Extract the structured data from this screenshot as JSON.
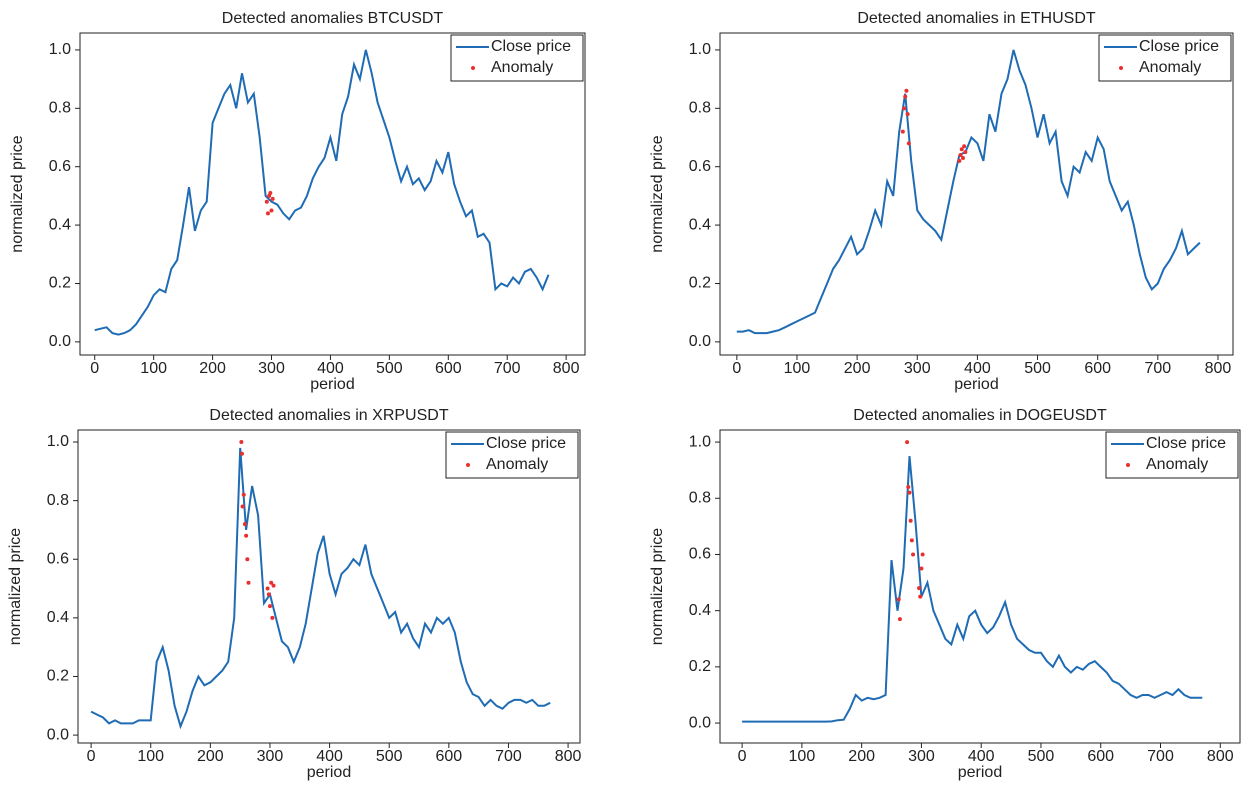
{
  "chart_data": [
    {
      "type": "line",
      "title": "Detected anomalies BTCUSDT",
      "x_label": "period",
      "y_label": "normalized price",
      "xlim": [
        -25,
        832
      ],
      "ylim": [
        -0.045,
        1.058
      ],
      "xticks": [
        0,
        100,
        200,
        300,
        400,
        500,
        600,
        700,
        800
      ],
      "yticks": [
        {
          "value": 0,
          "label": "0.0"
        },
        {
          "value": 0.2,
          "label": "0.2"
        },
        {
          "value": 0.4,
          "label": "0.4"
        },
        {
          "value": 0.6,
          "label": "0.6"
        },
        {
          "value": 0.8,
          "label": "0.8"
        },
        {
          "value": 1,
          "label": "1.0"
        }
      ],
      "legend": "upper right",
      "series": [
        {
          "name": "Close price",
          "color": "#1f6cb5",
          "style": "line",
          "x": [
            0,
            10,
            20,
            30,
            40,
            50,
            60,
            70,
            80,
            90,
            100,
            110,
            120,
            130,
            140,
            150,
            160,
            170,
            180,
            190,
            200,
            210,
            220,
            230,
            240,
            250,
            260,
            270,
            280,
            290,
            300,
            310,
            320,
            330,
            340,
            350,
            360,
            370,
            380,
            390,
            400,
            410,
            420,
            430,
            440,
            450,
            460,
            470,
            480,
            490,
            500,
            510,
            520,
            530,
            540,
            550,
            560,
            570,
            580,
            590,
            600,
            610,
            620,
            630,
            640,
            650,
            660,
            670,
            680,
            690,
            700,
            710,
            720,
            730,
            740,
            750,
            760,
            770
          ],
          "values": [
            0.04,
            0.045,
            0.05,
            0.03,
            0.025,
            0.03,
            0.04,
            0.06,
            0.09,
            0.12,
            0.16,
            0.18,
            0.17,
            0.25,
            0.28,
            0.4,
            0.53,
            0.38,
            0.45,
            0.48,
            0.75,
            0.8,
            0.85,
            0.88,
            0.8,
            0.92,
            0.82,
            0.85,
            0.7,
            0.5,
            0.48,
            0.47,
            0.44,
            0.42,
            0.45,
            0.46,
            0.5,
            0.56,
            0.6,
            0.63,
            0.7,
            0.62,
            0.78,
            0.84,
            0.95,
            0.9,
            1.0,
            0.92,
            0.82,
            0.76,
            0.7,
            0.62,
            0.55,
            0.6,
            0.54,
            0.56,
            0.52,
            0.55,
            0.62,
            0.58,
            0.65,
            0.54,
            0.48,
            0.43,
            0.45,
            0.36,
            0.37,
            0.34,
            0.18,
            0.2,
            0.19,
            0.22,
            0.2,
            0.24,
            0.25,
            0.22,
            0.18,
            0.23
          ]
        },
        {
          "name": "Anomaly",
          "color": "#e8312f",
          "style": "markers",
          "x": [
            292,
            294,
            296,
            298,
            300,
            302
          ],
          "values": [
            0.48,
            0.44,
            0.5,
            0.51,
            0.45,
            0.49
          ]
        }
      ]
    },
    {
      "type": "line",
      "title": "Detected anomalies in ETHUSDT",
      "x_label": "period",
      "y_label": "normalized price",
      "xlim": [
        -28,
        825
      ],
      "ylim": [
        -0.045,
        1.058
      ],
      "xticks": [
        0,
        100,
        200,
        300,
        400,
        500,
        600,
        700,
        800
      ],
      "yticks": [
        {
          "value": 0,
          "label": "0.0"
        },
        {
          "value": 0.2,
          "label": "0.2"
        },
        {
          "value": 0.4,
          "label": "0.4"
        },
        {
          "value": 0.6,
          "label": "0.6"
        },
        {
          "value": 0.8,
          "label": "0.8"
        },
        {
          "value": 1,
          "label": "1.0"
        }
      ],
      "legend": "upper right",
      "series": [
        {
          "name": "Close price",
          "color": "#1f6cb5",
          "style": "line",
          "x": [
            0,
            10,
            20,
            30,
            40,
            50,
            60,
            70,
            80,
            90,
            100,
            110,
            120,
            130,
            140,
            150,
            160,
            170,
            180,
            190,
            200,
            210,
            220,
            230,
            240,
            250,
            260,
            270,
            280,
            290,
            300,
            310,
            320,
            330,
            340,
            350,
            360,
            370,
            380,
            390,
            400,
            410,
            420,
            430,
            440,
            450,
            460,
            470,
            480,
            490,
            500,
            510,
            520,
            530,
            540,
            550,
            560,
            570,
            580,
            590,
            600,
            610,
            620,
            630,
            640,
            650,
            660,
            670,
            680,
            690,
            700,
            710,
            720,
            730,
            740,
            750,
            760,
            770
          ],
          "values": [
            0.035,
            0.035,
            0.04,
            0.03,
            0.03,
            0.03,
            0.035,
            0.04,
            0.05,
            0.06,
            0.07,
            0.08,
            0.09,
            0.1,
            0.15,
            0.2,
            0.25,
            0.28,
            0.32,
            0.36,
            0.3,
            0.32,
            0.38,
            0.45,
            0.4,
            0.55,
            0.5,
            0.72,
            0.85,
            0.62,
            0.45,
            0.42,
            0.4,
            0.38,
            0.35,
            0.45,
            0.55,
            0.64,
            0.65,
            0.7,
            0.68,
            0.62,
            0.78,
            0.72,
            0.85,
            0.9,
            1.0,
            0.93,
            0.88,
            0.8,
            0.7,
            0.78,
            0.68,
            0.72,
            0.55,
            0.5,
            0.6,
            0.58,
            0.65,
            0.62,
            0.7,
            0.66,
            0.55,
            0.5,
            0.45,
            0.48,
            0.4,
            0.3,
            0.22,
            0.18,
            0.2,
            0.25,
            0.28,
            0.32,
            0.38,
            0.3,
            0.32,
            0.34
          ]
        },
        {
          "name": "Anomaly",
          "color": "#e8312f",
          "style": "markers",
          "x": [
            276,
            278,
            280,
            282,
            284,
            286,
            370,
            372,
            374,
            376,
            378,
            380
          ],
          "values": [
            0.72,
            0.8,
            0.84,
            0.86,
            0.78,
            0.68,
            0.62,
            0.64,
            0.66,
            0.63,
            0.67,
            0.65
          ]
        }
      ]
    },
    {
      "type": "line",
      "title": "Detected anomalies in XRPUSDT",
      "x_label": "period",
      "y_label": "normalized price",
      "xlim": [
        -22,
        820
      ],
      "ylim": [
        -0.027,
        1.041
      ],
      "xticks": [
        0,
        100,
        200,
        300,
        400,
        500,
        600,
        700,
        800
      ],
      "yticks": [
        {
          "value": 0,
          "label": "0.0"
        },
        {
          "value": 0.2,
          "label": "0.2"
        },
        {
          "value": 0.4,
          "label": "0.4"
        },
        {
          "value": 0.6,
          "label": "0.6"
        },
        {
          "value": 0.8,
          "label": "0.8"
        },
        {
          "value": 1,
          "label": "1.0"
        }
      ],
      "legend": "upper right",
      "series": [
        {
          "name": "Close price",
          "color": "#1f6cb5",
          "style": "line",
          "x": [
            0,
            10,
            20,
            30,
            40,
            50,
            60,
            70,
            80,
            90,
            100,
            110,
            120,
            130,
            140,
            150,
            160,
            170,
            180,
            190,
            200,
            210,
            220,
            230,
            240,
            250,
            260,
            270,
            280,
            290,
            300,
            310,
            320,
            330,
            340,
            350,
            360,
            370,
            380,
            390,
            400,
            410,
            420,
            430,
            440,
            450,
            460,
            470,
            480,
            490,
            500,
            510,
            520,
            530,
            540,
            550,
            560,
            570,
            580,
            590,
            600,
            610,
            620,
            630,
            640,
            650,
            660,
            670,
            680,
            690,
            700,
            710,
            720,
            730,
            740,
            750,
            760,
            770
          ],
          "values": [
            0.08,
            0.07,
            0.06,
            0.04,
            0.05,
            0.04,
            0.04,
            0.04,
            0.05,
            0.05,
            0.05,
            0.25,
            0.3,
            0.22,
            0.1,
            0.03,
            0.08,
            0.15,
            0.2,
            0.17,
            0.18,
            0.2,
            0.22,
            0.25,
            0.4,
            0.98,
            0.7,
            0.85,
            0.75,
            0.45,
            0.48,
            0.4,
            0.32,
            0.3,
            0.25,
            0.3,
            0.38,
            0.5,
            0.62,
            0.68,
            0.55,
            0.48,
            0.55,
            0.57,
            0.6,
            0.58,
            0.65,
            0.55,
            0.5,
            0.45,
            0.4,
            0.42,
            0.35,
            0.38,
            0.33,
            0.3,
            0.38,
            0.35,
            0.4,
            0.38,
            0.4,
            0.35,
            0.25,
            0.18,
            0.14,
            0.13,
            0.1,
            0.12,
            0.1,
            0.09,
            0.11,
            0.12,
            0.12,
            0.11,
            0.12,
            0.1,
            0.1,
            0.11
          ]
        },
        {
          "name": "Anomaly",
          "color": "#e8312f",
          "style": "markers",
          "x": [
            252,
            253,
            254,
            256,
            258,
            260,
            262,
            264,
            296,
            298,
            300,
            302,
            304,
            306
          ],
          "values": [
            1.0,
            0.96,
            0.78,
            0.82,
            0.72,
            0.68,
            0.6,
            0.52,
            0.5,
            0.48,
            0.44,
            0.52,
            0.4,
            0.51
          ]
        }
      ]
    },
    {
      "type": "line",
      "title": "Detected anomalies in DOGEUSDT",
      "x_label": "period",
      "y_label": "normalized price",
      "xlim": [
        -37,
        833
      ],
      "ylim": [
        -0.071,
        1.043
      ],
      "xticks": [
        0,
        100,
        200,
        300,
        400,
        500,
        600,
        700,
        800
      ],
      "yticks": [
        {
          "value": 0,
          "label": "0.0"
        },
        {
          "value": 0.2,
          "label": "0.2"
        },
        {
          "value": 0.4,
          "label": "0.4"
        },
        {
          "value": 0.6,
          "label": "0.6"
        },
        {
          "value": 0.8,
          "label": "0.8"
        },
        {
          "value": 1,
          "label": "1.0"
        }
      ],
      "legend": "upper right",
      "series": [
        {
          "name": "Close price",
          "color": "#1f6cb5",
          "style": "line",
          "x": [
            0,
            10,
            20,
            30,
            40,
            50,
            60,
            70,
            80,
            90,
            100,
            110,
            120,
            130,
            140,
            150,
            160,
            170,
            180,
            190,
            200,
            210,
            220,
            230,
            240,
            250,
            260,
            270,
            280,
            290,
            300,
            310,
            320,
            330,
            340,
            350,
            360,
            370,
            380,
            390,
            400,
            410,
            420,
            430,
            440,
            450,
            460,
            470,
            480,
            490,
            500,
            510,
            520,
            530,
            540,
            550,
            560,
            570,
            580,
            590,
            600,
            610,
            620,
            630,
            640,
            650,
            660,
            670,
            680,
            690,
            700,
            710,
            720,
            730,
            740,
            750,
            760,
            770
          ],
          "values": [
            0.005,
            0.005,
            0.005,
            0.005,
            0.005,
            0.005,
            0.005,
            0.005,
            0.005,
            0.005,
            0.005,
            0.005,
            0.005,
            0.005,
            0.005,
            0.006,
            0.01,
            0.012,
            0.05,
            0.1,
            0.08,
            0.09,
            0.085,
            0.09,
            0.1,
            0.58,
            0.4,
            0.55,
            0.95,
            0.72,
            0.45,
            0.5,
            0.4,
            0.35,
            0.3,
            0.28,
            0.35,
            0.3,
            0.38,
            0.4,
            0.35,
            0.32,
            0.34,
            0.38,
            0.43,
            0.35,
            0.3,
            0.28,
            0.26,
            0.25,
            0.25,
            0.22,
            0.2,
            0.24,
            0.2,
            0.18,
            0.2,
            0.19,
            0.21,
            0.22,
            0.2,
            0.18,
            0.15,
            0.14,
            0.12,
            0.1,
            0.09,
            0.1,
            0.1,
            0.09,
            0.1,
            0.11,
            0.1,
            0.12,
            0.1,
            0.09,
            0.09,
            0.09
          ]
        },
        {
          "name": "Anomaly",
          "color": "#e8312f",
          "style": "markers",
          "x": [
            262,
            264,
            276,
            278,
            280,
            282,
            284,
            286,
            296,
            298,
            300,
            302
          ],
          "values": [
            0.44,
            0.37,
            1.0,
            0.84,
            0.82,
            0.72,
            0.65,
            0.6,
            0.48,
            0.45,
            0.55,
            0.6
          ]
        }
      ]
    }
  ]
}
